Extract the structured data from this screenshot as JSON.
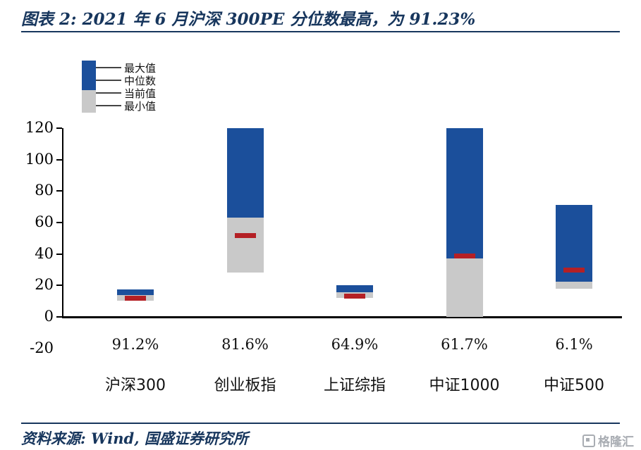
{
  "title": "图表 2: 2021 年 6 月沪深 300PE 分位数最高，为 91.23%",
  "source": "资料来源: Wind, 国盛证券研究所",
  "watermark": "格隆汇",
  "legend": {
    "items": [
      "最大值",
      "中位数",
      "当前值",
      "最小值"
    ]
  },
  "colors": {
    "navy": "#17365d",
    "blue": "#1b4f9b",
    "gray": "#c9c9c9",
    "red": "#b42025"
  },
  "chart_data": {
    "type": "bar",
    "subtype": "floating-range",
    "title": "2021年6月沪深300PE分位数最高，为91.23%",
    "categories": [
      "沪深300",
      "创业板指",
      "上证综指",
      "中证1000",
      "中证500"
    ],
    "series": [
      {
        "key": "min",
        "name": "最小值",
        "values": [
          10.5,
          28,
          12,
          0,
          18
        ]
      },
      {
        "key": "median",
        "name": "中位数",
        "values": [
          14,
          63,
          15.5,
          37,
          22.5
        ]
      },
      {
        "key": "max",
        "name": "最大值",
        "values": [
          17.5,
          120,
          20,
          120,
          71
        ]
      },
      {
        "key": "current",
        "name": "当前值",
        "values": [
          12,
          52,
          13.5,
          39,
          30
        ]
      }
    ],
    "percent_labels": [
      "91.2%",
      "81.6%",
      "64.9%",
      "61.7%",
      "6.1%"
    ],
    "ylim": [
      -20,
      120
    ],
    "yticks": [
      120,
      100,
      80,
      60,
      40,
      20,
      0,
      -20
    ],
    "legend_position": "top-left",
    "grid": false
  }
}
